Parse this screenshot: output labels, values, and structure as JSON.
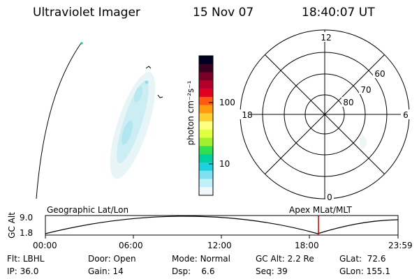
{
  "header": {
    "instrument": "Ultraviolet Imager",
    "date": "15 Nov 07",
    "time": "18:40:07 UT"
  },
  "colorbar": {
    "label": "photon cm⁻²s⁻¹",
    "ticks": [
      {
        "value": 100,
        "label": "100"
      },
      {
        "value": 10,
        "label": "10"
      }
    ],
    "colors": [
      "#000022",
      "#3a0022",
      "#7a0028",
      "#b2002a",
      "#e00020",
      "#ff5a10",
      "#ff9a10",
      "#ffd030",
      "#ffff80",
      "#e0ff40",
      "#a0f030",
      "#30e050",
      "#00d0a0",
      "#20d0e0",
      "#80e0f0",
      "#c0f0f8",
      "#f0f8fa"
    ]
  },
  "polar_grid": {
    "labels": {
      "top": "12",
      "left": "18",
      "right": "6",
      "bottom": "0"
    },
    "lat_labels": [
      "60",
      "70",
      "80"
    ]
  },
  "orbit_panel": {
    "ylabel": "GC Alt",
    "yticks": [
      "9.0",
      "1.8"
    ],
    "left_title": "Geographic Lat/Lon",
    "right_title": "Apex MLat/MLT",
    "xticks": [
      "00:00",
      "06:00",
      "12:00",
      "18:00",
      "23:59"
    ],
    "marker_color": "#cc0000"
  },
  "info": {
    "flt_label": "Flt:",
    "flt_value": "LBHL",
    "ip_label": "IP:",
    "ip_value": "36.0",
    "door_label": "Door:",
    "door_value": "Open",
    "gain_label": "Gain:",
    "gain_value": "14",
    "mode_label": "Mode:",
    "mode_value": "Normal",
    "dsp_label": "Dsp:",
    "dsp_value": "6.6",
    "gcalt_label": "GC Alt:",
    "gcalt_value": "2.2 Re",
    "seq_label": "Seq:",
    "seq_value": "39",
    "glat_label": "GLat:",
    "glat_value": "72.6",
    "glon_label": "GLon:",
    "glon_value": "155.1"
  }
}
